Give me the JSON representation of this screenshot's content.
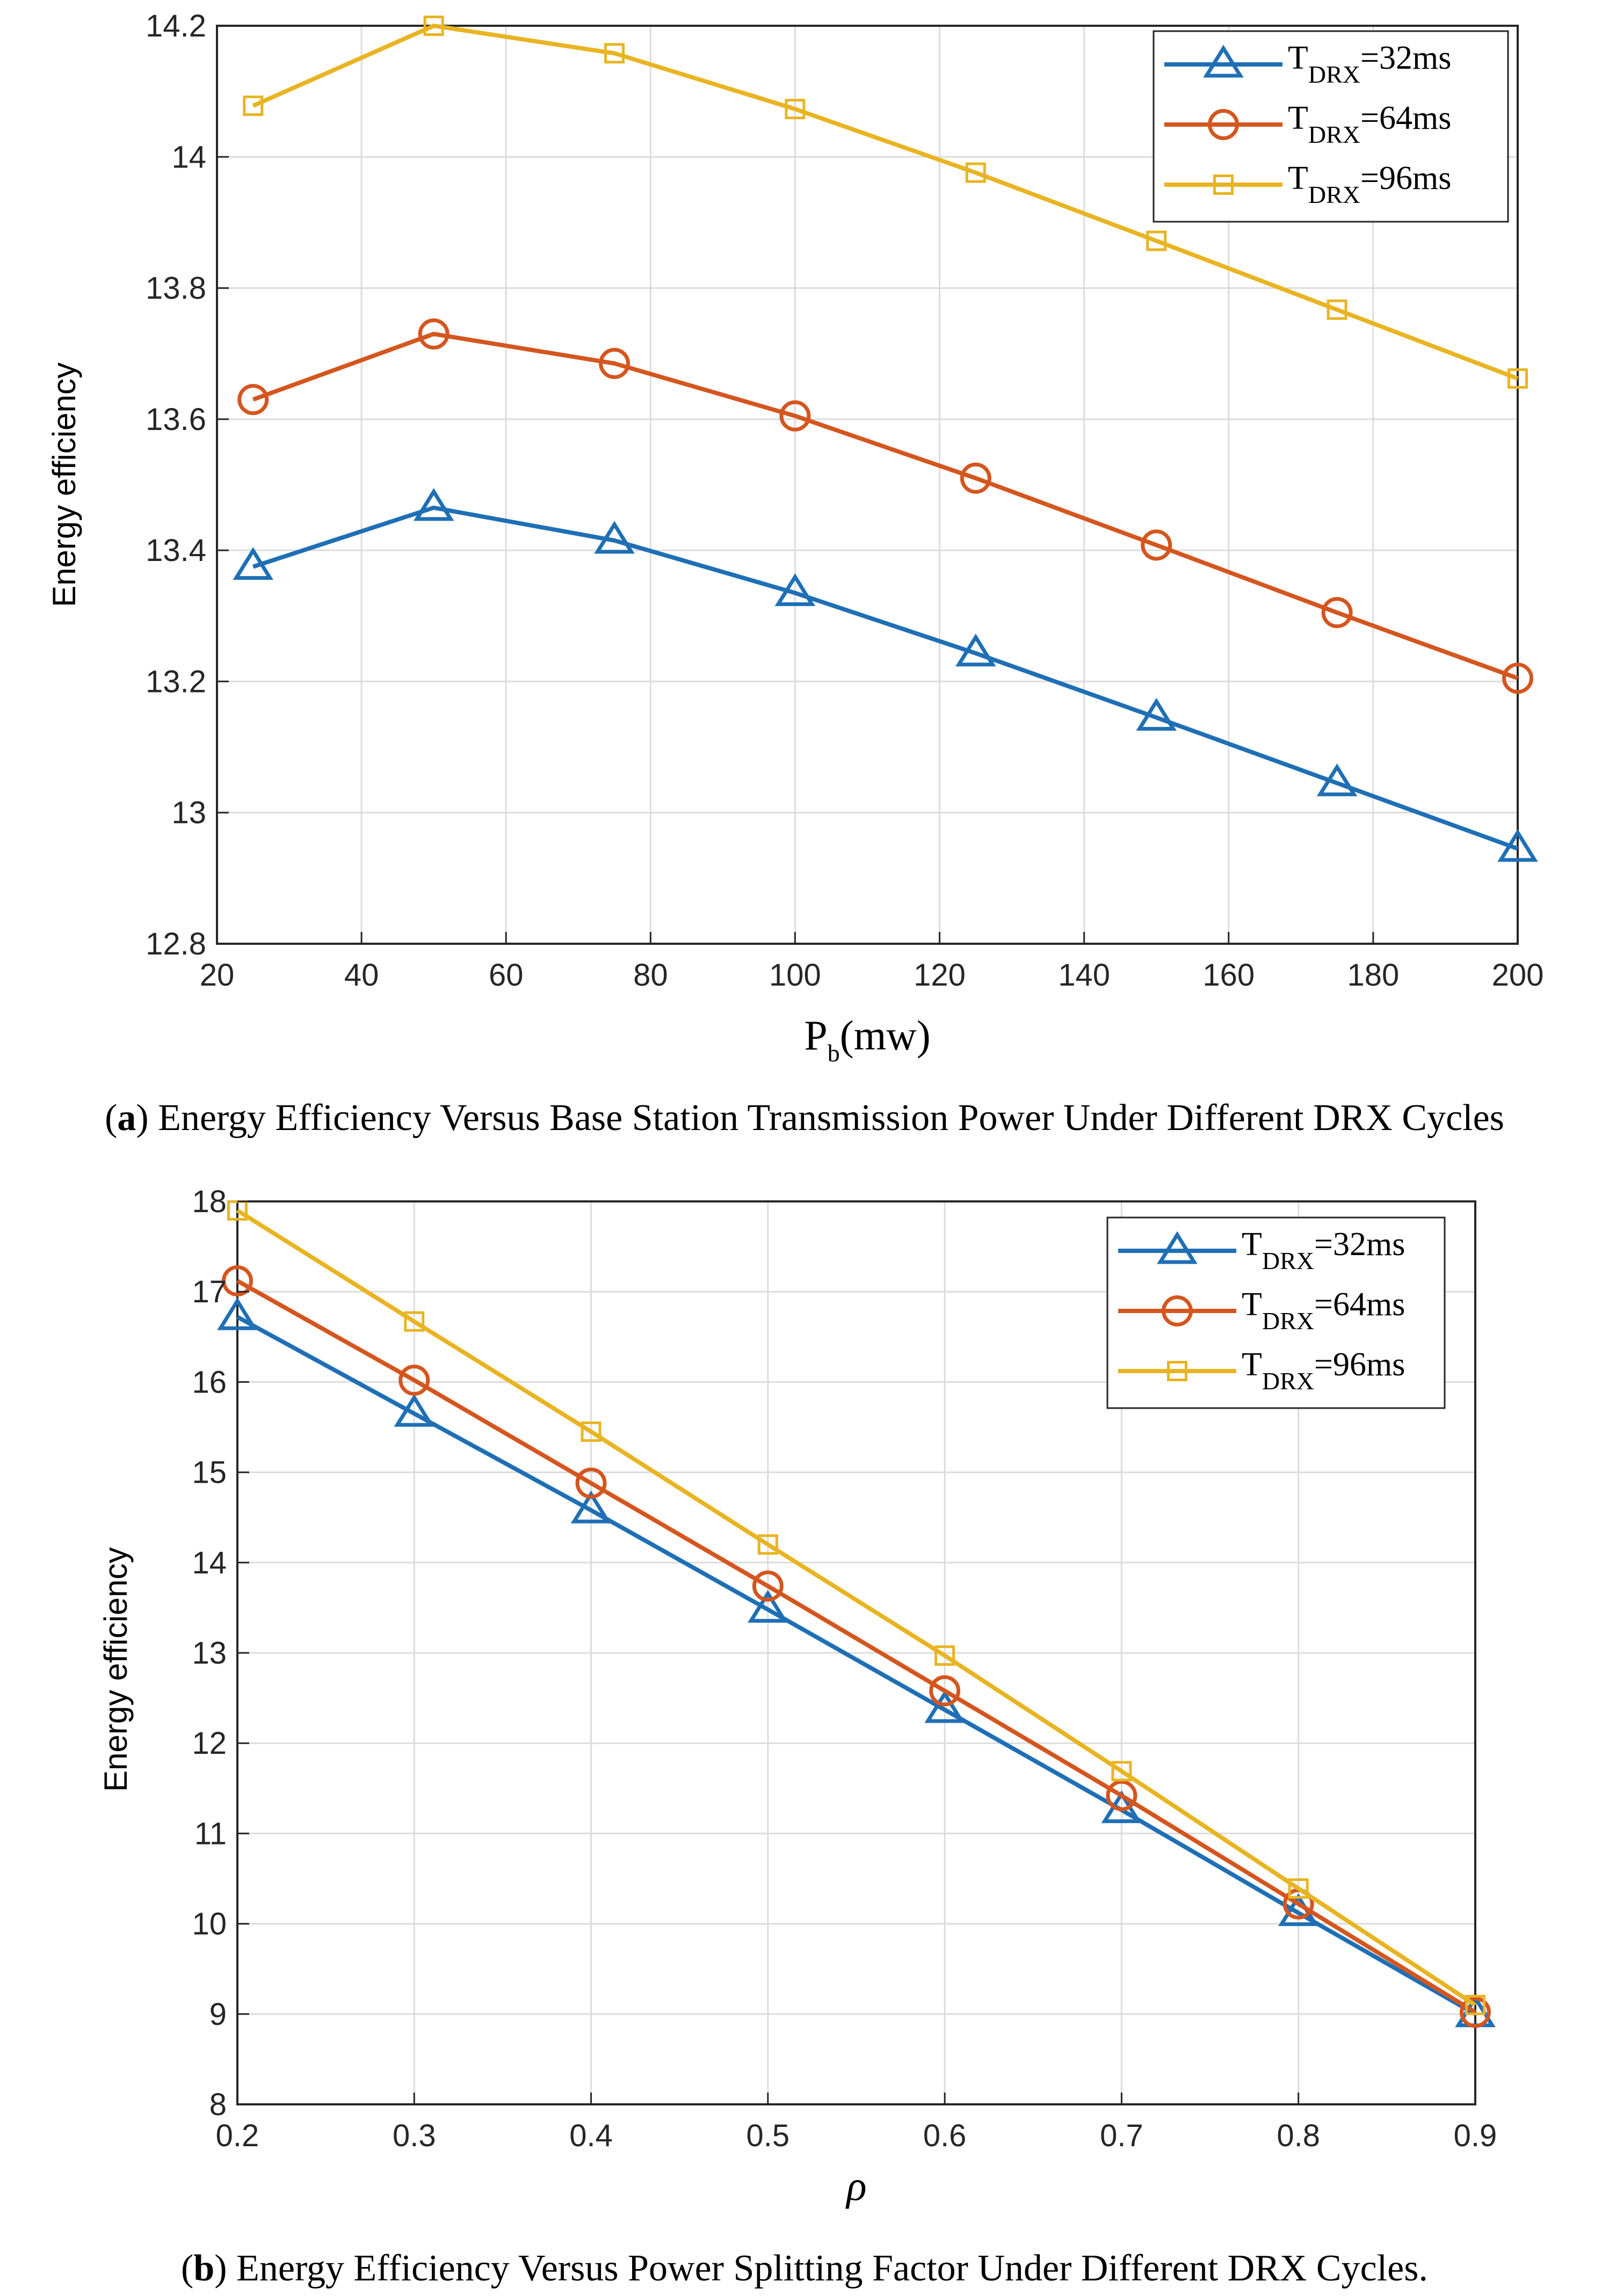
{
  "chart_data": [
    {
      "type": "line",
      "x": [
        25,
        50,
        75,
        100,
        125,
        150,
        175,
        200
      ],
      "series": [
        {
          "name": "T_DRX=32ms",
          "legend_main": "T",
          "legend_sub": "DRX",
          "legend_tail": "=32ms",
          "marker": "triangle",
          "color": "#1f6fb5",
          "values": [
            13.375,
            13.465,
            13.415,
            13.335,
            13.243,
            13.145,
            13.045,
            12.945
          ]
        },
        {
          "name": "T_DRX=64ms",
          "legend_main": "T",
          "legend_sub": "DRX",
          "legend_tail": "=64ms",
          "marker": "circle",
          "color": "#d4561f",
          "values": [
            13.63,
            13.73,
            13.685,
            13.605,
            13.51,
            13.408,
            13.305,
            13.205
          ]
        },
        {
          "name": "T_DRX=96ms",
          "legend_main": "T",
          "legend_sub": "DRX",
          "legend_tail": "=96ms",
          "marker": "square",
          "color": "#e8b422",
          "values": [
            14.078,
            14.2,
            14.158,
            14.073,
            13.976,
            13.872,
            13.767,
            13.662
          ]
        }
      ],
      "xlim": [
        20,
        200
      ],
      "ylim": [
        12.8,
        14.2
      ],
      "xticks": [
        "20",
        "40",
        "60",
        "80",
        "100",
        "120",
        "140",
        "160",
        "180",
        "200"
      ],
      "yticks": [
        "12.8",
        "13",
        "13.2",
        "13.4",
        "13.6",
        "13.8",
        "14",
        "14.2"
      ],
      "xlabel_main": "P",
      "xlabel_sub": "b",
      "xlabel_tail": "(mw)",
      "ylabel": "Energy efficiency",
      "grid": true,
      "legend_position": "top-right",
      "caption_letter": "a",
      "caption_text": "Energy Efficiency Versus Base Station Transmission Power Under Different DRX Cycles"
    },
    {
      "type": "line",
      "x": [
        0.2,
        0.3,
        0.4,
        0.5,
        0.6,
        0.7,
        0.8,
        0.9
      ],
      "series": [
        {
          "name": "T_DRX=32ms",
          "legend_main": "T",
          "legend_sub": "DRX",
          "legend_tail": "=32ms",
          "marker": "triangle",
          "color": "#1f6fb5",
          "values": [
            16.72,
            15.65,
            14.58,
            13.48,
            12.37,
            11.26,
            10.12,
            9.0
          ]
        },
        {
          "name": "T_DRX=64ms",
          "legend_main": "T",
          "legend_sub": "DRX",
          "legend_tail": "=64ms",
          "marker": "circle",
          "color": "#d4561f",
          "values": [
            17.12,
            16.02,
            14.88,
            13.74,
            12.58,
            11.42,
            10.22,
            9.02
          ]
        },
        {
          "name": "T_DRX=96ms",
          "legend_main": "T",
          "legend_sub": "DRX",
          "legend_tail": "=96ms",
          "marker": "square",
          "color": "#e8b422",
          "values": [
            17.9,
            16.67,
            15.45,
            14.2,
            12.97,
            11.69,
            10.39,
            9.1
          ]
        }
      ],
      "xlim": [
        0.2,
        0.9
      ],
      "ylim": [
        8,
        18
      ],
      "xticks": [
        "0.2",
        "0.3",
        "0.4",
        "0.5",
        "0.6",
        "0.7",
        "0.8",
        "0.9"
      ],
      "yticks": [
        "8",
        "9",
        "10",
        "11",
        "12",
        "13",
        "14",
        "15",
        "16",
        "17",
        "18"
      ],
      "xlabel_main": "ρ",
      "xlabel_sub": "",
      "xlabel_tail": "",
      "ylabel": "Energy efficiency",
      "grid": true,
      "legend_position": "top-right",
      "caption_letter": "b",
      "caption_text": "Energy Efficiency Versus Power Splitting Factor Under Different DRX Cycles."
    }
  ]
}
